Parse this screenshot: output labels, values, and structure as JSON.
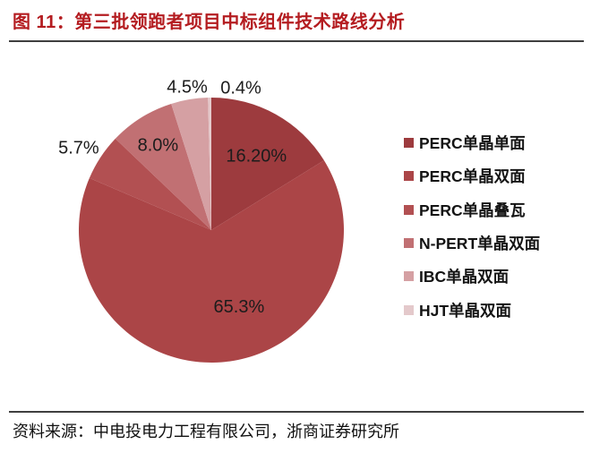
{
  "header": {
    "figure_label": "图 11：",
    "title": "第三批领跑者项目中标组件技术路线分析",
    "title_color": "#b41c20",
    "rule_color": "#3f3f3f"
  },
  "chart_data": {
    "type": "pie",
    "title": "第三批领跑者项目中标组件技术路线分析",
    "categories": [
      "PERC单晶单面",
      "PERC单晶双面",
      "PERC单晶叠瓦",
      "N-PERT单晶双面",
      "IBC单晶双面",
      "HJT单晶双面"
    ],
    "values": [
      16.2,
      65.3,
      5.7,
      8.0,
      4.5,
      0.4
    ],
    "value_labels": [
      "16.20%",
      "65.3%",
      "5.7%",
      "8.0%",
      "4.5%",
      "0.4%"
    ],
    "colors": [
      "#9d3b3e",
      "#ab4547",
      "#b25052",
      "#c17073",
      "#d5a0a3",
      "#e4c9cb"
    ],
    "start_angle_deg": 0,
    "direction": "clockwise",
    "legend_position": "right",
    "label_color": "#1c1c1c"
  },
  "footer": {
    "source_label": "资料来源：",
    "source_value": "中电投电力工程有限公司，浙商证券研究所"
  }
}
